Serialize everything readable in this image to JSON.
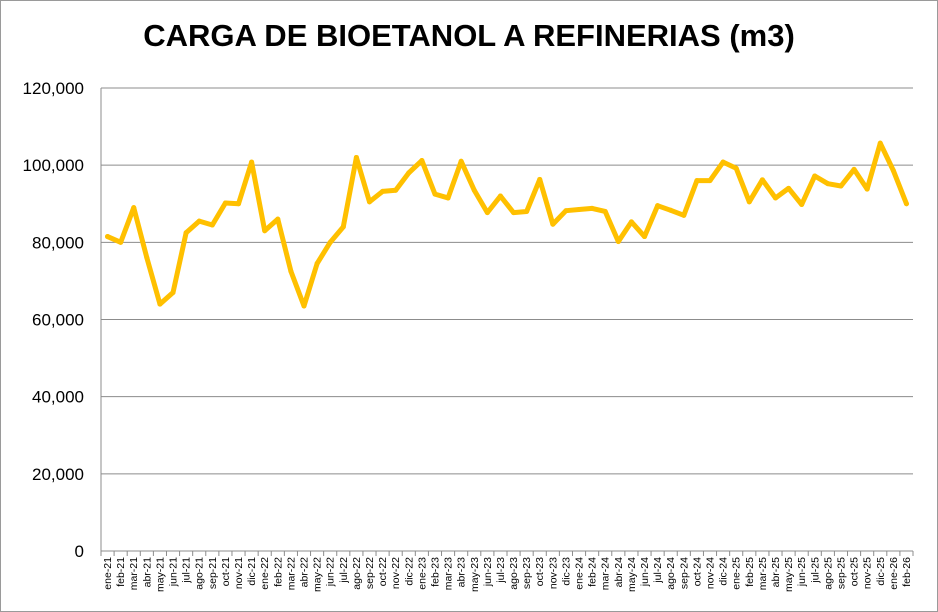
{
  "chart_data": {
    "type": "line",
    "title": "CARGA DE BIOETANOL A REFINERIAS (m3)",
    "xlabel": "",
    "ylabel": "",
    "ylim": [
      0,
      120000
    ],
    "yticks": [
      0,
      20000,
      40000,
      60000,
      80000,
      100000,
      120000
    ],
    "ytick_labels": [
      "0",
      "20,000",
      "40,000",
      "60,000",
      "80,000",
      "100,000",
      "120,000"
    ],
    "grid": true,
    "legend": "none",
    "line_color": "#FFC000",
    "categories": [
      "ene-21",
      "feb-21",
      "mar-21",
      "abr-21",
      "may-21",
      "jun-21",
      "jul-21",
      "ago-21",
      "sep-21",
      "oct-21",
      "nov-21",
      "dic-21",
      "ene-22",
      "feb-22",
      "mar-22",
      "abr-22",
      "may-22",
      "jun-22",
      "jul-22",
      "ago-22",
      "sep-22",
      "oct-22",
      "nov-22",
      "dic-22",
      "ene-23",
      "feb-23",
      "mar-23",
      "abr-23",
      "may-23",
      "jun-23",
      "jul-23",
      "ago-23",
      "sep-23",
      "oct-23",
      "nov-23",
      "dic-23",
      "ene-24",
      "feb-24",
      "mar-24",
      "abr-24",
      "may-24",
      "jun-24",
      "jul-24",
      "ago-24",
      "sep-24",
      "oct-24",
      "nov-24",
      "dic-24",
      "ene-25",
      "feb-25",
      "mar-25",
      "abr-25",
      "may-25",
      "jun-25",
      "jul-25",
      "ago-25",
      "sep-25",
      "oct-25",
      "nov-25",
      "dic-25",
      "ene-26",
      "feb-26"
    ],
    "values": [
      81500,
      80000,
      89000,
      76000,
      64000,
      67000,
      82500,
      85500,
      84500,
      90200,
      90000,
      100800,
      83000,
      86000,
      72500,
      63500,
      74500,
      80000,
      84000,
      102000,
      90500,
      93200,
      93500,
      98000,
      101200,
      92500,
      91500,
      101000,
      93500,
      87700,
      92000,
      87700,
      88000,
      96300,
      84700,
      88200,
      88500,
      88800,
      88000,
      80200,
      85300,
      81500,
      89500,
      88300,
      87000,
      96000,
      96000,
      100800,
      99200,
      90500,
      96200,
      91500,
      94000,
      89800,
      97200,
      95200,
      94600,
      98900,
      93800,
      105700,
      98600,
      90000
    ]
  }
}
